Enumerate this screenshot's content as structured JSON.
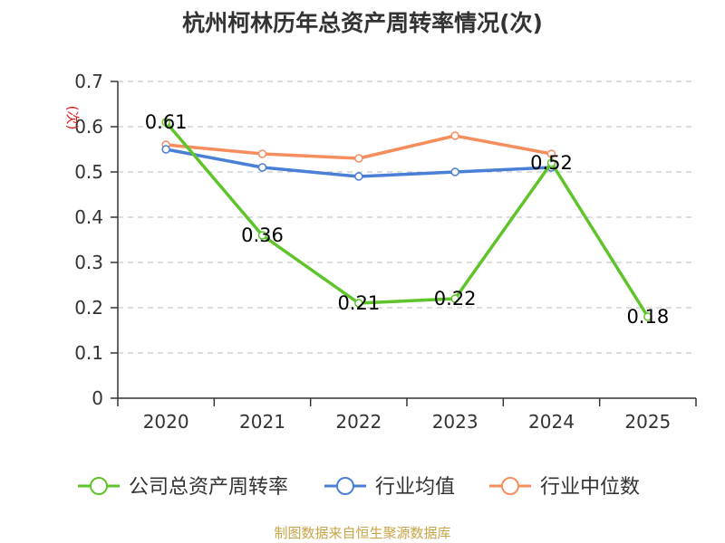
{
  "title": "杭州柯林历年总资产周转率情况(次)",
  "footer": "制图数据来自恒生聚源数据库",
  "chart_data": {
    "type": "line",
    "title": "杭州柯林历年总资产周转率情况(次)",
    "ylabel": "(次)",
    "xlabel": "",
    "categories": [
      "2020",
      "2021",
      "2022",
      "2023",
      "2024",
      "2025"
    ],
    "ylim": [
      0,
      0.7
    ],
    "yticks": [
      "0",
      "0.1",
      "0.2",
      "0.3",
      "0.4",
      "0.5",
      "0.6",
      "0.7"
    ],
    "grid": true,
    "legend_position": "bottom",
    "series": [
      {
        "name": "公司总资产周转率",
        "color": "#5ec42a",
        "values": [
          0.61,
          0.36,
          0.21,
          0.22,
          0.52,
          0.18
        ],
        "labels": [
          "0.61",
          "0.36",
          "0.21",
          "0.22",
          "0.52",
          "0.18"
        ]
      },
      {
        "name": "行业均值",
        "color": "#4a7fd6",
        "values": [
          0.55,
          0.51,
          0.49,
          0.5,
          0.51,
          null
        ]
      },
      {
        "name": "行业中位数",
        "color": "#f58d5c",
        "values": [
          0.56,
          0.54,
          0.53,
          0.58,
          0.54,
          null
        ]
      }
    ]
  }
}
